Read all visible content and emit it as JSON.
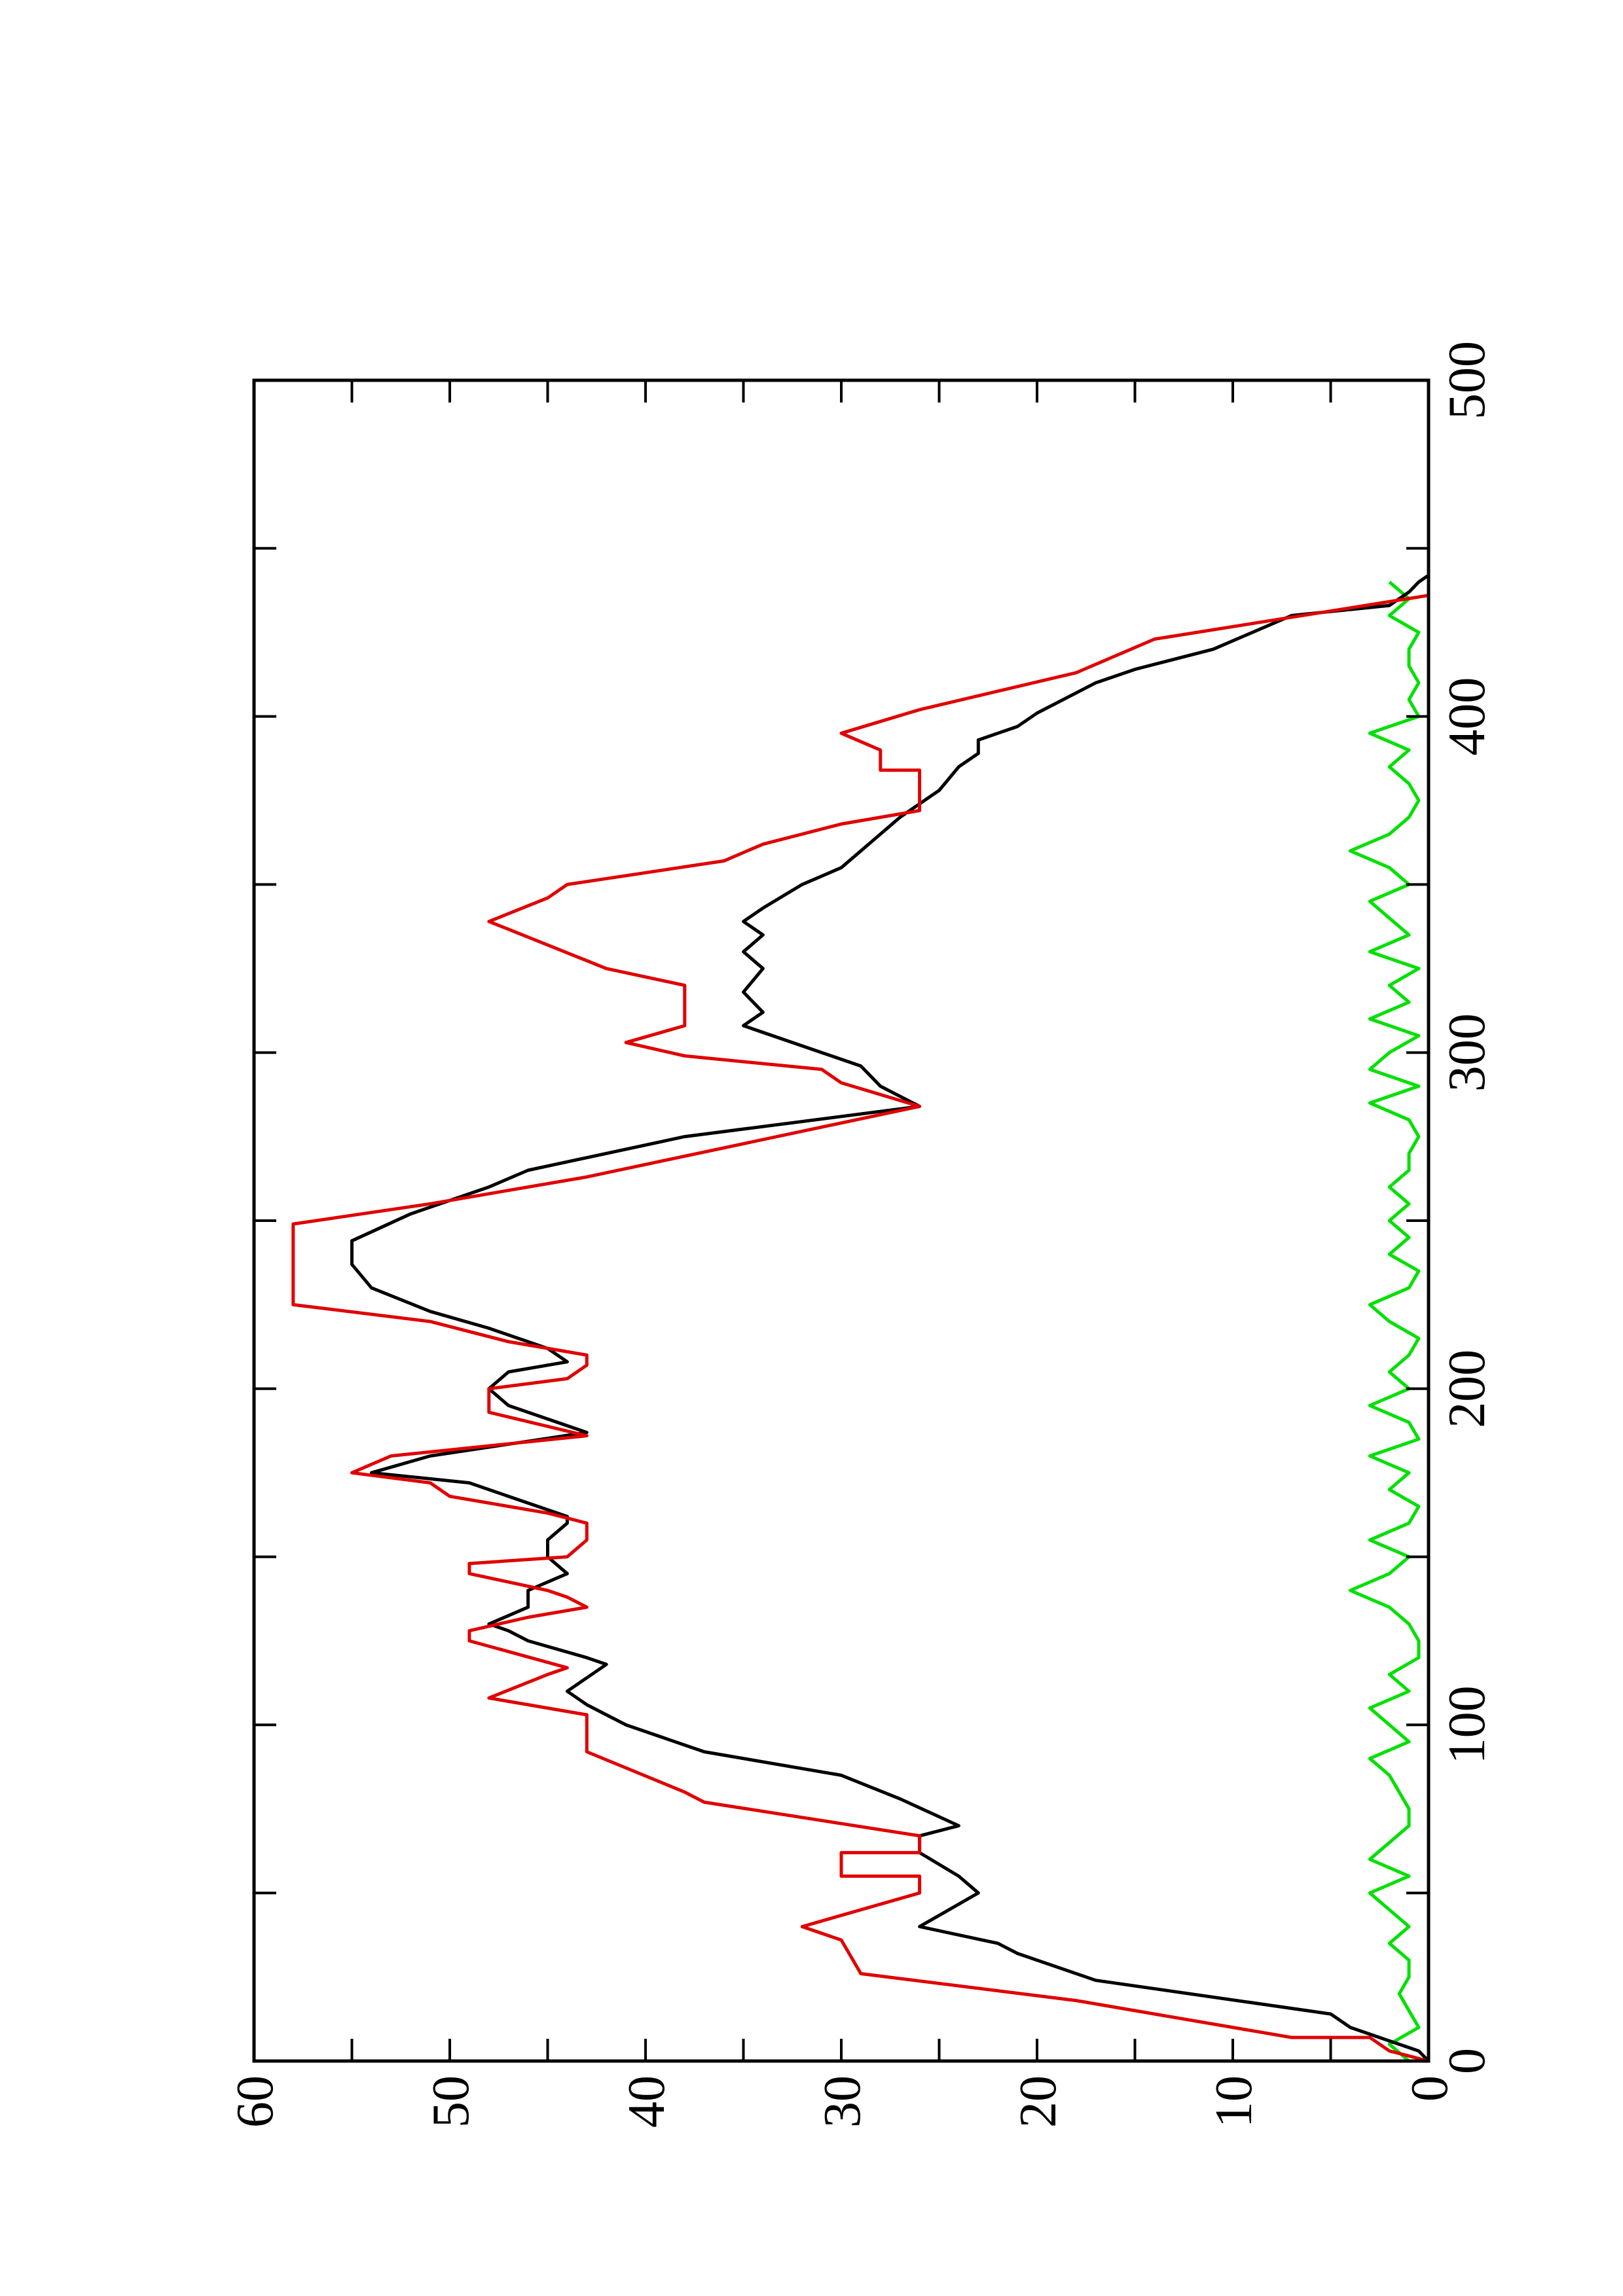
{
  "chart_data": {
    "type": "line",
    "xlim": [
      0,
      500
    ],
    "xticks": [
      0,
      100,
      200,
      300,
      400,
      500
    ],
    "xminorticks": [
      50,
      150,
      250,
      350,
      450
    ],
    "ylim": [
      0,
      60
    ],
    "yticks": [
      0,
      10,
      20,
      30,
      40,
      50,
      60
    ],
    "yminorticks": [
      5,
      15,
      25,
      35,
      45,
      55
    ],
    "rotation": -90,
    "series": [
      {
        "color": "#00e000",
        "x": [
          0,
          5,
          10,
          15,
          20,
          25,
          30,
          35,
          40,
          45,
          50,
          55,
          60,
          65,
          70,
          75,
          80,
          85,
          90,
          95,
          100,
          105,
          110,
          115,
          120,
          125,
          130,
          135,
          140,
          145,
          150,
          155,
          160,
          165,
          170,
          175,
          180,
          185,
          190,
          195,
          200,
          205,
          210,
          215,
          220,
          225,
          230,
          235,
          240,
          245,
          250,
          255,
          260,
          265,
          270,
          275,
          280,
          285,
          290,
          295,
          300,
          305,
          310,
          315,
          320,
          325,
          330,
          335,
          340,
          345,
          350,
          355,
          360,
          365,
          370,
          375,
          380,
          385,
          390,
          395,
          400,
          405,
          410,
          415,
          420,
          425,
          430,
          435,
          440
        ],
        "values": [
          1,
          2,
          0.5,
          1,
          1.5,
          1,
          1,
          2,
          1,
          2,
          3,
          1,
          3,
          2,
          1,
          1,
          1.5,
          2,
          3,
          1,
          2,
          3,
          1,
          2,
          0.5,
          0.5,
          1,
          2,
          4,
          2,
          1,
          3,
          1,
          0.5,
          2,
          1,
          3,
          0.5,
          1,
          3,
          1,
          2,
          1,
          0.5,
          2,
          3,
          1,
          0.5,
          2,
          1,
          2,
          1,
          2,
          1,
          1,
          0.5,
          1,
          3,
          0.5,
          3,
          2,
          0.5,
          3,
          1,
          2,
          0.5,
          3,
          1,
          2,
          3,
          1,
          2,
          4,
          2,
          1,
          0.5,
          1,
          2,
          1,
          3,
          0.5,
          1,
          0.5,
          1,
          1,
          0.5,
          2,
          1,
          2
        ]
      },
      {
        "color": "#000000",
        "x": [
          0,
          3,
          6,
          10,
          14,
          24,
          32,
          35,
          40,
          50,
          55,
          62,
          67,
          70,
          78,
          85,
          92,
          100,
          103,
          106,
          110,
          114,
          118,
          120,
          125,
          128,
          130,
          135,
          140,
          145,
          150,
          155,
          160,
          162,
          168,
          172,
          175,
          180,
          187,
          195,
          200,
          205,
          208,
          212,
          218,
          223,
          230,
          237,
          244,
          252,
          260,
          265,
          275,
          284,
          290,
          296,
          300,
          308,
          312,
          318,
          325,
          330,
          335,
          339,
          343,
          350,
          355,
          365,
          370,
          378,
          385,
          389,
          393,
          397,
          401,
          410,
          414,
          420,
          430,
          433,
          437,
          440,
          442
        ],
        "values": [
          0,
          0.5,
          2,
          4,
          5,
          17,
          21,
          22,
          26,
          23,
          24,
          26,
          26,
          24,
          27,
          30,
          37,
          41,
          42,
          43,
          44,
          43,
          42,
          43,
          46,
          47,
          48,
          46,
          46,
          44,
          45,
          45,
          44,
          44,
          47,
          49,
          54,
          51,
          43,
          47,
          48,
          47,
          44,
          45,
          48,
          51,
          54,
          55,
          55,
          52,
          48,
          46,
          38,
          26,
          28,
          29,
          31,
          35,
          34,
          35,
          34,
          35,
          34,
          35,
          34,
          32,
          30,
          28,
          27,
          25,
          24,
          23,
          23,
          21,
          20,
          17,
          15,
          11,
          7,
          2,
          1,
          0.5,
          0
        ]
      },
      {
        "color": "#e00000",
        "x": [
          0,
          3,
          7,
          7,
          18,
          26,
          36,
          40,
          50,
          55,
          55,
          62,
          62,
          67,
          77,
          80,
          92,
          103,
          108,
          115,
          117,
          125,
          128,
          132,
          135,
          138,
          140,
          145,
          148,
          150,
          155,
          160,
          163,
          168,
          172,
          175,
          180,
          186,
          193,
          200,
          203,
          207,
          210,
          214,
          220,
          225,
          249,
          255,
          263,
          284,
          291,
          295,
          299,
          303,
          308,
          320,
          325,
          332,
          339,
          346,
          350,
          357,
          362,
          368,
          372,
          384,
          384,
          390,
          395,
          402,
          413,
          423,
          436
        ],
        "values": [
          0,
          2,
          3,
          7,
          18,
          29,
          30,
          32,
          26,
          26,
          30,
          30,
          26,
          26,
          37,
          38,
          43,
          43,
          48,
          45,
          44,
          49,
          49,
          46,
          43,
          44,
          45,
          49,
          49,
          44,
          43,
          43,
          45,
          50,
          51,
          55,
          53,
          43,
          48,
          48,
          44,
          43,
          43,
          47,
          51,
          58,
          58,
          51,
          43,
          26,
          30,
          31,
          38,
          41,
          38,
          38,
          42,
          45,
          48,
          45,
          44,
          36,
          34,
          30,
          26,
          26,
          28,
          28,
          30,
          26,
          18,
          14,
          0
        ]
      }
    ]
  }
}
